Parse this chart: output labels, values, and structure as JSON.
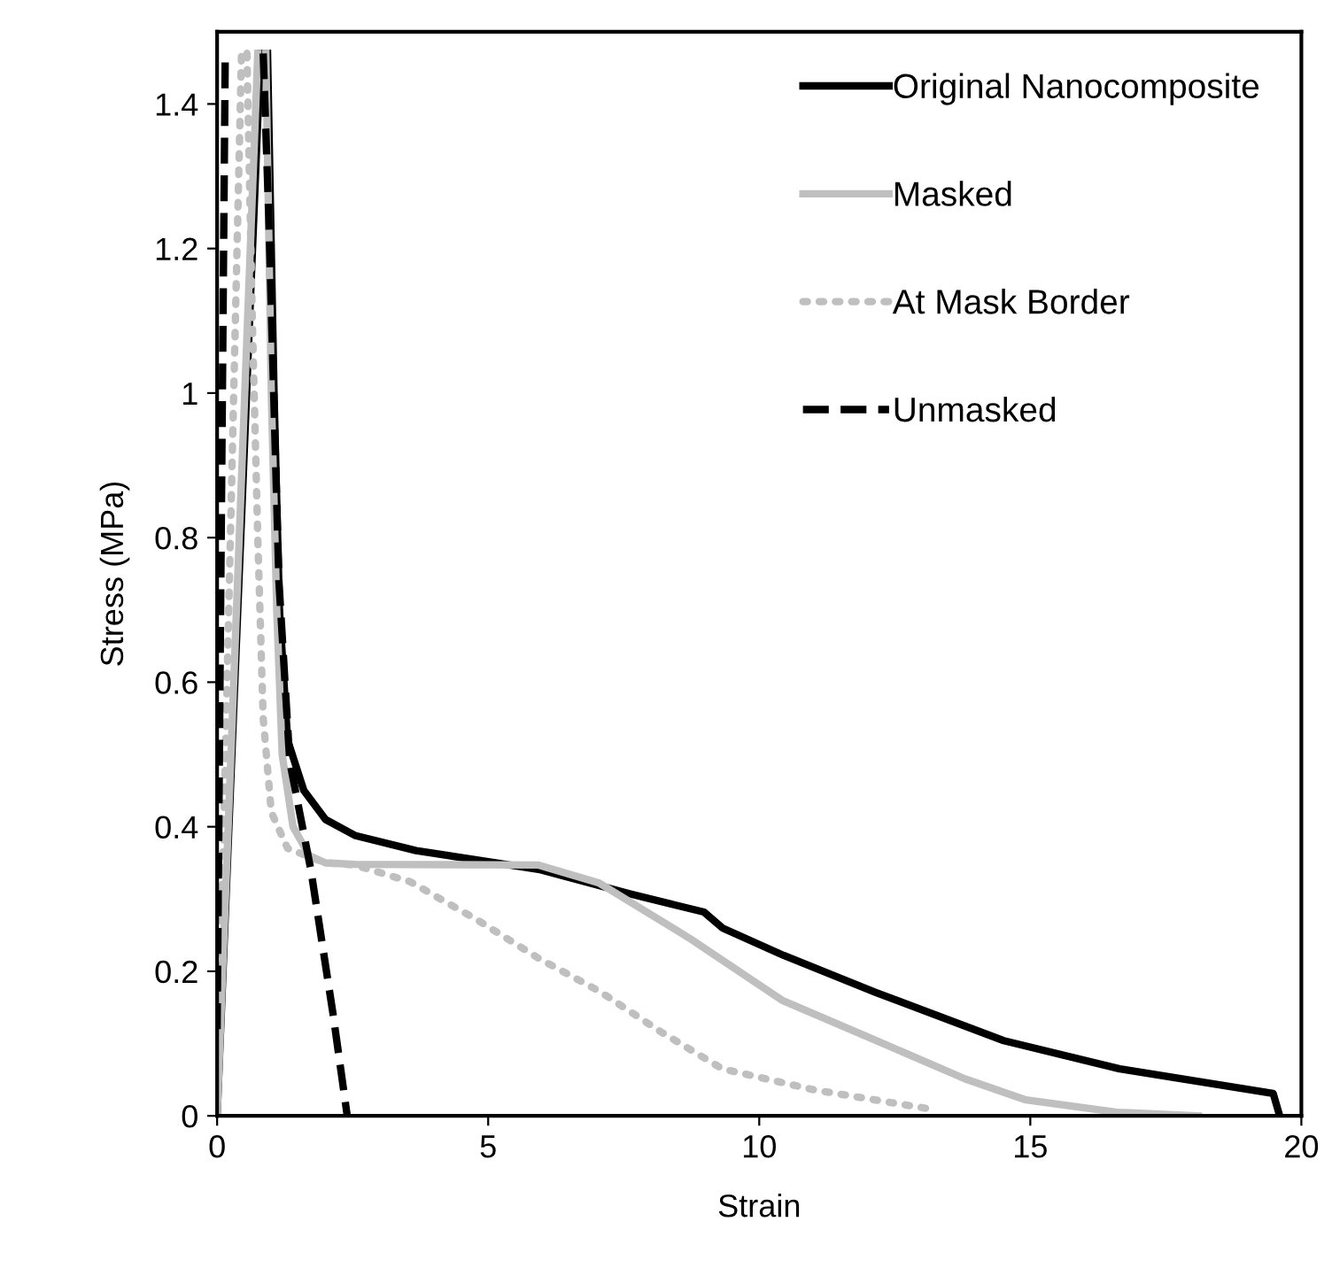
{
  "chart_data": {
    "type": "line",
    "xlabel": "Strain",
    "ylabel": "Stress (MPa)",
    "xlim": [
      0,
      20
    ],
    "xticks": [
      0,
      5,
      10,
      15,
      20
    ],
    "ylim": [
      0,
      1.5
    ],
    "yticks": [
      0,
      0.2,
      0.4,
      0.6,
      0.8,
      1,
      1.2,
      1.4
    ],
    "grid": false,
    "legend": "top right",
    "marker": "none",
    "series": [
      {
        "name": "Original Nanocomposite",
        "color": "#000000",
        "line_style": "solid",
        "x": [
          0,
          0.8,
          0.87,
          0.93,
          1.05,
          1.15,
          1.3,
          1.6,
          2.0,
          2.54,
          3.67,
          5.93,
          7.62,
          8.98,
          9.32,
          10.45,
          12.14,
          14.51,
          16.65,
          19.48,
          19.6
        ],
        "values": [
          0,
          1.47,
          null,
          1.47,
          1.0,
          0.7,
          0.52,
          0.45,
          0.41,
          0.388,
          0.367,
          0.341,
          0.307,
          0.282,
          0.26,
          0.222,
          0.171,
          0.104,
          0.065,
          0.031,
          0
        ]
      },
      {
        "name": "Masked",
        "color": "#bfbfbf",
        "line_style": "solid",
        "x": [
          0,
          0.75,
          0.82,
          0.9,
          1.0,
          1.1,
          1.2,
          1.4,
          1.7,
          2.0,
          2.54,
          5.93,
          7.05,
          8.73,
          10.42,
          12.1,
          13.8,
          14.92,
          16.6,
          18.1
        ],
        "values": [
          0,
          1.47,
          null,
          1.47,
          1.0,
          0.7,
          0.5,
          0.4,
          0.36,
          0.35,
          0.348,
          0.347,
          0.322,
          0.245,
          0.16,
          0.106,
          0.051,
          0.022,
          0.005,
          0
        ]
      },
      {
        "name": "At Mask Border",
        "color": "#bfbfbf",
        "line_style": "dotted",
        "x": [
          0,
          0.45,
          0.5,
          0.55,
          0.65,
          0.75,
          0.85,
          1.0,
          1.3,
          2.0,
          2.54,
          3.56,
          4.8,
          5.93,
          7.06,
          8.19,
          9.32,
          11.01,
          13.27
        ],
        "values": [
          0,
          1.47,
          null,
          1.47,
          1.1,
          0.8,
          0.55,
          0.42,
          0.37,
          0.35,
          0.347,
          0.324,
          0.271,
          0.218,
          0.172,
          0.116,
          0.065,
          0.036,
          0.008
        ]
      },
      {
        "name": "Unmasked",
        "color": "#000000",
        "line_style": "dashed",
        "x": [
          0,
          0.15,
          0.5,
          0.85,
          0.95,
          1.14,
          1.34,
          1.73,
          2.14,
          2.4
        ],
        "values": [
          0.12,
          1.47,
          null,
          1.47,
          1.25,
          0.74,
          0.49,
          0.34,
          0.14,
          0
        ]
      }
    ]
  }
}
